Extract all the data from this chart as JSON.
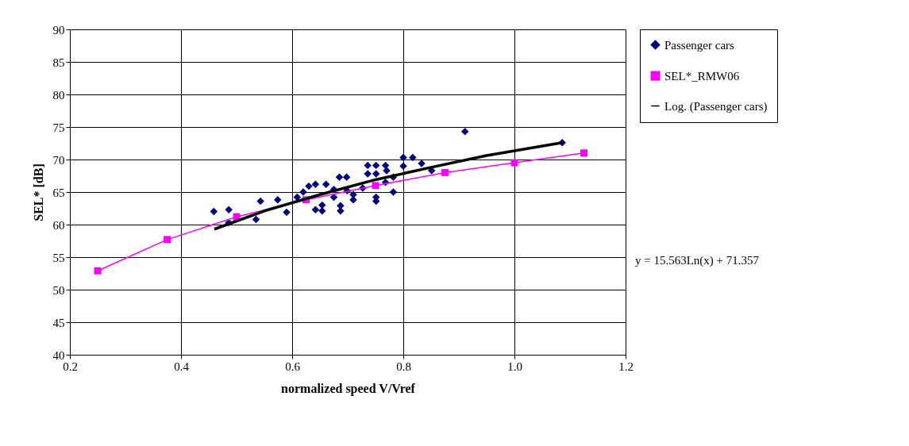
{
  "chart_data": {
    "type": "scatter",
    "xlabel": "normalized speed V/Vref",
    "ylabel": "SEL* [dB]",
    "xlim": [
      0.2,
      1.2
    ],
    "ylim": [
      40,
      90
    ],
    "xticks": [
      0.2,
      0.4,
      0.6,
      0.8,
      {
        "value": 1.0,
        "label": "1.0"
      },
      1.2
    ],
    "yticks": [
      40,
      45,
      50,
      55,
      60,
      65,
      70,
      75,
      80,
      85,
      90
    ],
    "grid": true,
    "legend": "right",
    "annotations": [
      "y = 15.563Ln(x) + 71.357"
    ],
    "series": [
      {
        "name": "Passenger cars",
        "marker": "diamond",
        "color": "#000080",
        "x": [
          0.459,
          0.486,
          0.486,
          0.543,
          0.535,
          0.574,
          0.59,
          0.609,
          0.62,
          0.63,
          0.642,
          0.661,
          0.675,
          0.685,
          0.698,
          0.642,
          0.654,
          0.654,
          0.675,
          0.687,
          0.687,
          0.699,
          0.71,
          0.71,
          0.727,
          0.736,
          0.736,
          0.751,
          0.751,
          0.751,
          0.751,
          0.768,
          0.77,
          0.768,
          0.782,
          0.782,
          0.8,
          0.8,
          0.817,
          0.833,
          0.851,
          0.911,
          1.086
        ],
        "values": [
          62.0,
          62.3,
          60.3,
          63.6,
          60.8,
          63.8,
          61.9,
          64.2,
          65.0,
          65.9,
          66.2,
          66.2,
          65.4,
          67.3,
          67.3,
          62.3,
          63.0,
          62.1,
          64.2,
          62.9,
          62.1,
          65.2,
          64.6,
          63.8,
          65.6,
          69.1,
          67.8,
          69.1,
          67.8,
          64.2,
          63.6,
          69.1,
          68.3,
          66.5,
          65.0,
          67.3,
          70.3,
          69.0,
          70.3,
          69.4,
          68.3,
          74.3,
          72.6
        ]
      },
      {
        "name": "SEL*_RMW06",
        "type": "line",
        "marker": "square",
        "color": "#ff00ff",
        "x": [
          0.25,
          0.375,
          0.5,
          0.625,
          0.75,
          0.875,
          1.0,
          1.125
        ],
        "values": [
          52.9,
          57.7,
          61.2,
          63.8,
          66.0,
          68.0,
          69.5,
          71.0
        ]
      },
      {
        "name": "Log. (Passenger cars)",
        "type": "line",
        "marker": "none",
        "color": "#000000",
        "x": [
          0.46,
          0.55,
          0.65,
          0.75,
          0.85,
          0.95,
          1.086
        ],
        "values": [
          59.3,
          62.1,
          64.6,
          66.9,
          68.8,
          70.6,
          72.6
        ]
      }
    ]
  }
}
